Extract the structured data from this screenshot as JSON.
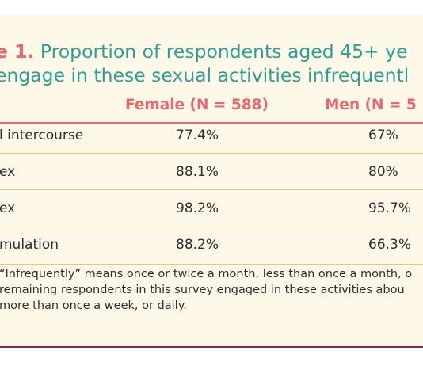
{
  "table": {
    "title_label": "e 1.",
    "title_line1": " Proportion of respondents aged 45+ ye",
    "title_line2": "engage in these sexual activities infrequentl",
    "headers": {
      "female": "Female (N = 588)",
      "men": "Men (N = 5"
    },
    "rows": [
      {
        "activity": "l intercourse",
        "female": "77.4%",
        "men": "67%"
      },
      {
        "activity": "ex",
        "female": "88.1%",
        "men": "80%"
      },
      {
        "activity": "ex",
        "female": "98.2%",
        "men": "95.7%"
      },
      {
        "activity": "mulation",
        "female": "88.2%",
        "men": "66.3%"
      }
    ],
    "footnote": [
      "“Infrequently” means once or twice a month, less than once a month, o",
      " remaining respondents in this survey engaged in these activities abou",
      "more than once a week, or daily."
    ]
  },
  "colors": {
    "background": "#fdf8e8",
    "title": "#2e9f94",
    "accent": "#e8686b",
    "row_rule": "#d3cd6f",
    "bottom_rule": "#7a3146"
  }
}
